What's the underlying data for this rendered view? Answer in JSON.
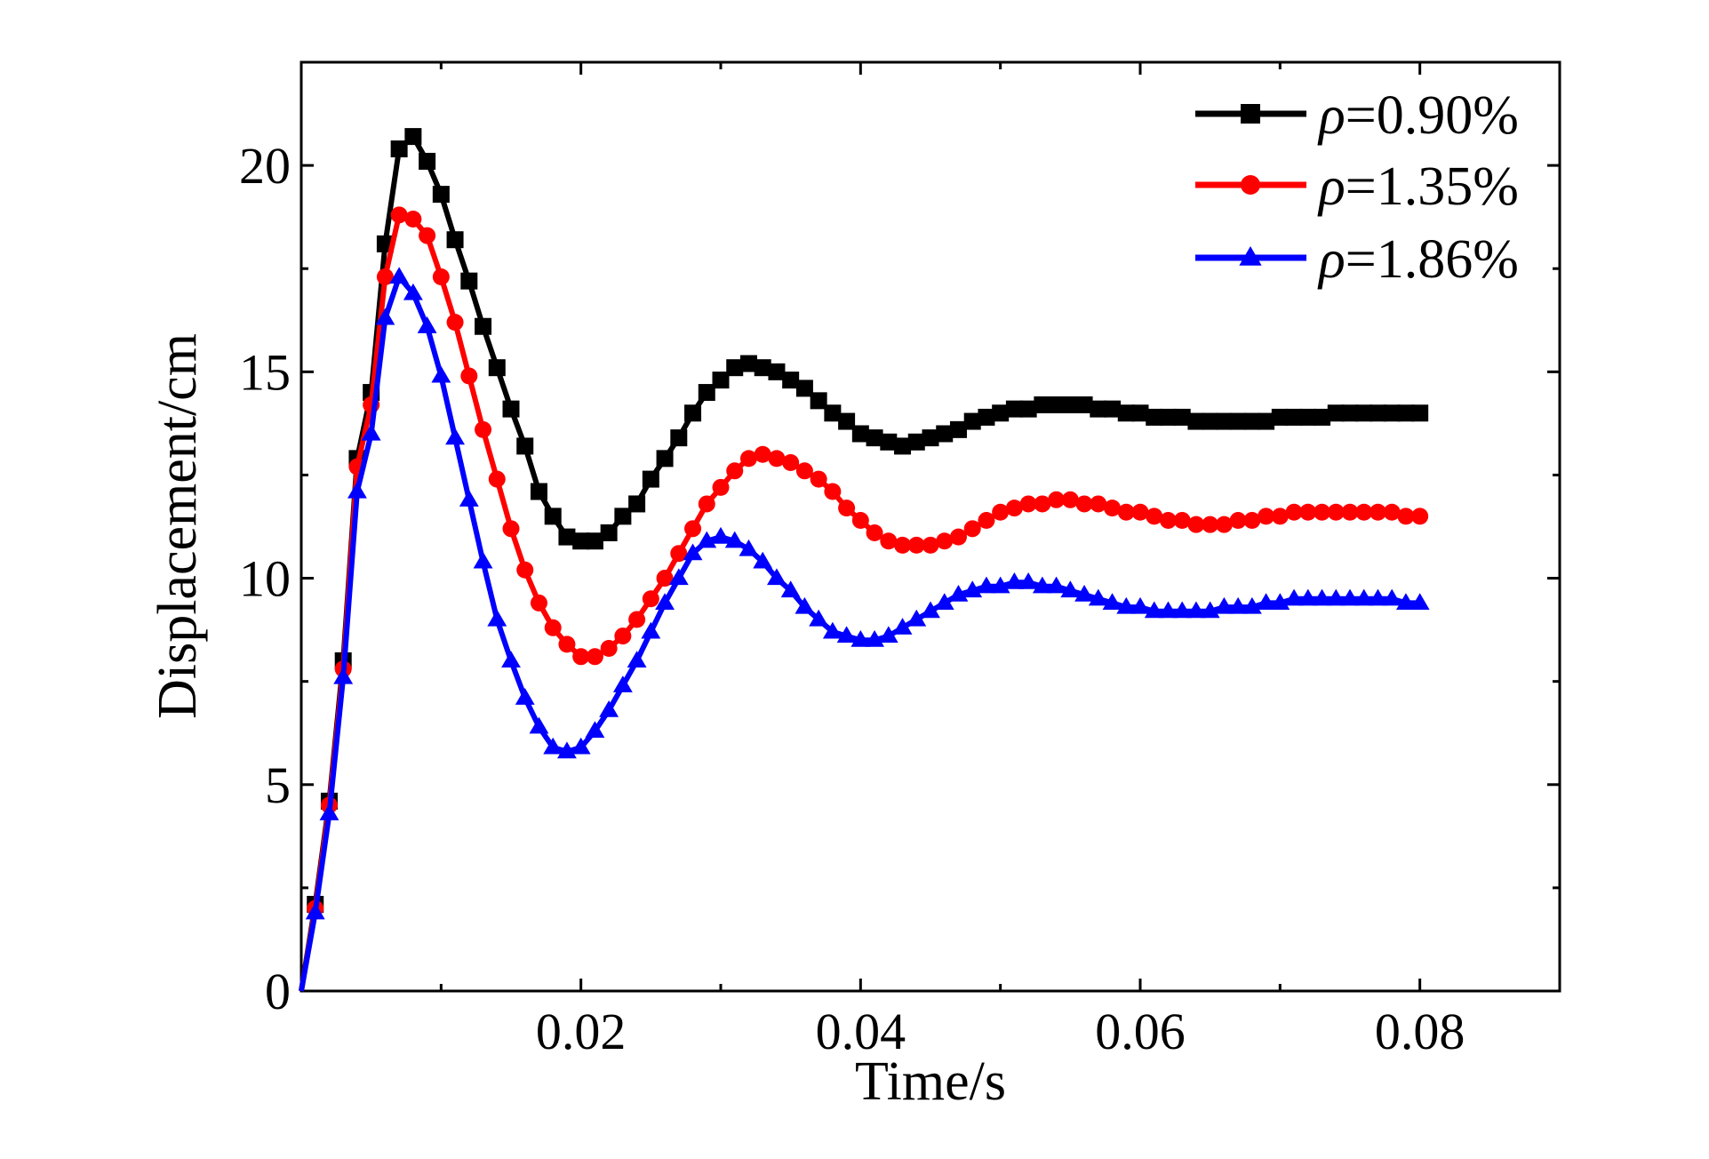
{
  "chart_data": {
    "type": "line",
    "title": "",
    "xlabel": "Time/s",
    "ylabel": "Displacement/cm",
    "xlim": [
      0,
      0.09
    ],
    "ylim": [
      0,
      22.5
    ],
    "xticks": [
      0.02,
      0.04,
      0.06,
      0.08
    ],
    "xtick_labels": [
      "0.02",
      "0.04",
      "0.06",
      "0.08"
    ],
    "yticks": [
      0,
      5,
      10,
      15,
      20
    ],
    "ytick_labels": [
      "0",
      "5",
      "10",
      "15",
      "20"
    ],
    "grid": false,
    "legend_position": "top-right",
    "series": [
      {
        "name": "ρ=0.90%",
        "legend_symbol": "ρ",
        "legend_text": "=0.90%",
        "color": "#000000",
        "marker": "square",
        "points": [
          [
            0,
            0
          ],
          [
            0.001,
            2.1
          ],
          [
            0.002,
            4.6
          ],
          [
            0.003,
            8.0
          ],
          [
            0.004,
            12.9
          ],
          [
            0.005,
            14.5
          ],
          [
            0.006,
            18.1
          ],
          [
            0.007,
            20.4
          ],
          [
            0.008,
            20.7
          ],
          [
            0.009,
            20.1
          ],
          [
            0.01,
            19.3
          ],
          [
            0.011,
            18.2
          ],
          [
            0.012,
            17.2
          ],
          [
            0.013,
            16.1
          ],
          [
            0.014,
            15.1
          ],
          [
            0.015,
            14.1
          ],
          [
            0.016,
            13.2
          ],
          [
            0.017,
            12.1
          ],
          [
            0.018,
            11.5
          ],
          [
            0.019,
            11.0
          ],
          [
            0.02,
            10.9
          ],
          [
            0.021,
            10.9
          ],
          [
            0.022,
            11.1
          ],
          [
            0.023,
            11.5
          ],
          [
            0.024,
            11.8
          ],
          [
            0.025,
            12.4
          ],
          [
            0.026,
            12.9
          ],
          [
            0.027,
            13.4
          ],
          [
            0.028,
            14.0
          ],
          [
            0.029,
            14.5
          ],
          [
            0.03,
            14.8
          ],
          [
            0.031,
            15.1
          ],
          [
            0.032,
            15.2
          ],
          [
            0.033,
            15.1
          ],
          [
            0.034,
            15.0
          ],
          [
            0.035,
            14.8
          ],
          [
            0.036,
            14.6
          ],
          [
            0.037,
            14.3
          ],
          [
            0.038,
            14.0
          ],
          [
            0.039,
            13.8
          ],
          [
            0.04,
            13.5
          ],
          [
            0.041,
            13.4
          ],
          [
            0.042,
            13.3
          ],
          [
            0.043,
            13.2
          ],
          [
            0.044,
            13.3
          ],
          [
            0.045,
            13.4
          ],
          [
            0.046,
            13.5
          ],
          [
            0.047,
            13.6
          ],
          [
            0.048,
            13.8
          ],
          [
            0.049,
            13.9
          ],
          [
            0.05,
            14.0
          ],
          [
            0.051,
            14.1
          ],
          [
            0.052,
            14.1
          ],
          [
            0.053,
            14.2
          ],
          [
            0.054,
            14.2
          ],
          [
            0.055,
            14.2
          ],
          [
            0.056,
            14.2
          ],
          [
            0.057,
            14.1
          ],
          [
            0.058,
            14.1
          ],
          [
            0.059,
            14.0
          ],
          [
            0.06,
            14.0
          ],
          [
            0.061,
            13.9
          ],
          [
            0.062,
            13.9
          ],
          [
            0.063,
            13.9
          ],
          [
            0.064,
            13.8
          ],
          [
            0.065,
            13.8
          ],
          [
            0.066,
            13.8
          ],
          [
            0.067,
            13.8
          ],
          [
            0.068,
            13.8
          ],
          [
            0.069,
            13.8
          ],
          [
            0.07,
            13.9
          ],
          [
            0.071,
            13.9
          ],
          [
            0.072,
            13.9
          ],
          [
            0.073,
            13.9
          ],
          [
            0.074,
            14.0
          ],
          [
            0.075,
            14.0
          ],
          [
            0.076,
            14.0
          ],
          [
            0.077,
            14.0
          ],
          [
            0.078,
            14.0
          ],
          [
            0.079,
            14.0
          ],
          [
            0.08,
            14.0
          ]
        ]
      },
      {
        "name": "ρ=1.35%",
        "legend_symbol": "ρ",
        "legend_text": "=1.35%",
        "color": "#ff0000",
        "marker": "circle",
        "points": [
          [
            0,
            0
          ],
          [
            0.001,
            2.0
          ],
          [
            0.002,
            4.5
          ],
          [
            0.003,
            7.8
          ],
          [
            0.004,
            12.7
          ],
          [
            0.005,
            14.2
          ],
          [
            0.006,
            17.3
          ],
          [
            0.007,
            18.8
          ],
          [
            0.008,
            18.7
          ],
          [
            0.009,
            18.3
          ],
          [
            0.01,
            17.3
          ],
          [
            0.011,
            16.2
          ],
          [
            0.012,
            14.9
          ],
          [
            0.013,
            13.6
          ],
          [
            0.014,
            12.4
          ],
          [
            0.015,
            11.2
          ],
          [
            0.016,
            10.2
          ],
          [
            0.017,
            9.4
          ],
          [
            0.018,
            8.8
          ],
          [
            0.019,
            8.4
          ],
          [
            0.02,
            8.1
          ],
          [
            0.021,
            8.1
          ],
          [
            0.022,
            8.3
          ],
          [
            0.023,
            8.6
          ],
          [
            0.024,
            9.0
          ],
          [
            0.025,
            9.5
          ],
          [
            0.026,
            10.0
          ],
          [
            0.027,
            10.6
          ],
          [
            0.028,
            11.2
          ],
          [
            0.029,
            11.8
          ],
          [
            0.03,
            12.2
          ],
          [
            0.031,
            12.6
          ],
          [
            0.032,
            12.9
          ],
          [
            0.033,
            13.0
          ],
          [
            0.034,
            12.9
          ],
          [
            0.035,
            12.8
          ],
          [
            0.036,
            12.6
          ],
          [
            0.037,
            12.4
          ],
          [
            0.038,
            12.1
          ],
          [
            0.039,
            11.7
          ],
          [
            0.04,
            11.4
          ],
          [
            0.041,
            11.1
          ],
          [
            0.042,
            10.9
          ],
          [
            0.043,
            10.8
          ],
          [
            0.044,
            10.8
          ],
          [
            0.045,
            10.8
          ],
          [
            0.046,
            10.9
          ],
          [
            0.047,
            11.0
          ],
          [
            0.048,
            11.2
          ],
          [
            0.049,
            11.4
          ],
          [
            0.05,
            11.6
          ],
          [
            0.051,
            11.7
          ],
          [
            0.052,
            11.8
          ],
          [
            0.053,
            11.8
          ],
          [
            0.054,
            11.9
          ],
          [
            0.055,
            11.9
          ],
          [
            0.056,
            11.8
          ],
          [
            0.057,
            11.8
          ],
          [
            0.058,
            11.7
          ],
          [
            0.059,
            11.6
          ],
          [
            0.06,
            11.6
          ],
          [
            0.061,
            11.5
          ],
          [
            0.062,
            11.4
          ],
          [
            0.063,
            11.4
          ],
          [
            0.064,
            11.3
          ],
          [
            0.065,
            11.3
          ],
          [
            0.066,
            11.3
          ],
          [
            0.067,
            11.4
          ],
          [
            0.068,
            11.4
          ],
          [
            0.069,
            11.5
          ],
          [
            0.07,
            11.5
          ],
          [
            0.071,
            11.6
          ],
          [
            0.072,
            11.6
          ],
          [
            0.073,
            11.6
          ],
          [
            0.074,
            11.6
          ],
          [
            0.075,
            11.6
          ],
          [
            0.076,
            11.6
          ],
          [
            0.077,
            11.6
          ],
          [
            0.078,
            11.6
          ],
          [
            0.079,
            11.5
          ],
          [
            0.08,
            11.5
          ]
        ]
      },
      {
        "name": "ρ=1.86%",
        "legend_symbol": "ρ",
        "legend_text": "=1.86%",
        "color": "#0000ff",
        "marker": "triangle",
        "points": [
          [
            0,
            0
          ],
          [
            0.001,
            1.9
          ],
          [
            0.002,
            4.3
          ],
          [
            0.003,
            7.6
          ],
          [
            0.004,
            12.1
          ],
          [
            0.005,
            13.5
          ],
          [
            0.006,
            16.3
          ],
          [
            0.007,
            17.3
          ],
          [
            0.008,
            16.9
          ],
          [
            0.009,
            16.1
          ],
          [
            0.01,
            14.9
          ],
          [
            0.011,
            13.4
          ],
          [
            0.012,
            11.9
          ],
          [
            0.013,
            10.4
          ],
          [
            0.014,
            9.0
          ],
          [
            0.015,
            8.0
          ],
          [
            0.016,
            7.1
          ],
          [
            0.017,
            6.4
          ],
          [
            0.018,
            5.9
          ],
          [
            0.019,
            5.8
          ],
          [
            0.02,
            5.9
          ],
          [
            0.021,
            6.3
          ],
          [
            0.022,
            6.8
          ],
          [
            0.023,
            7.4
          ],
          [
            0.024,
            8.0
          ],
          [
            0.025,
            8.7
          ],
          [
            0.026,
            9.4
          ],
          [
            0.027,
            10.0
          ],
          [
            0.028,
            10.6
          ],
          [
            0.029,
            10.9
          ],
          [
            0.03,
            11.0
          ],
          [
            0.031,
            10.9
          ],
          [
            0.032,
            10.7
          ],
          [
            0.033,
            10.4
          ],
          [
            0.034,
            10.0
          ],
          [
            0.035,
            9.7
          ],
          [
            0.036,
            9.3
          ],
          [
            0.037,
            9.0
          ],
          [
            0.038,
            8.7
          ],
          [
            0.039,
            8.6
          ],
          [
            0.04,
            8.5
          ],
          [
            0.041,
            8.5
          ],
          [
            0.042,
            8.6
          ],
          [
            0.043,
            8.8
          ],
          [
            0.044,
            9.0
          ],
          [
            0.045,
            9.2
          ],
          [
            0.046,
            9.4
          ],
          [
            0.047,
            9.6
          ],
          [
            0.048,
            9.7
          ],
          [
            0.049,
            9.8
          ],
          [
            0.05,
            9.8
          ],
          [
            0.051,
            9.9
          ],
          [
            0.052,
            9.9
          ],
          [
            0.053,
            9.8
          ],
          [
            0.054,
            9.8
          ],
          [
            0.055,
            9.7
          ],
          [
            0.056,
            9.6
          ],
          [
            0.057,
            9.5
          ],
          [
            0.058,
            9.4
          ],
          [
            0.059,
            9.3
          ],
          [
            0.06,
            9.3
          ],
          [
            0.061,
            9.2
          ],
          [
            0.062,
            9.2
          ],
          [
            0.063,
            9.2
          ],
          [
            0.064,
            9.2
          ],
          [
            0.065,
            9.2
          ],
          [
            0.066,
            9.3
          ],
          [
            0.067,
            9.3
          ],
          [
            0.068,
            9.3
          ],
          [
            0.069,
            9.4
          ],
          [
            0.07,
            9.4
          ],
          [
            0.071,
            9.5
          ],
          [
            0.072,
            9.5
          ],
          [
            0.073,
            9.5
          ],
          [
            0.074,
            9.5
          ],
          [
            0.075,
            9.5
          ],
          [
            0.076,
            9.5
          ],
          [
            0.077,
            9.5
          ],
          [
            0.078,
            9.5
          ],
          [
            0.079,
            9.4
          ],
          [
            0.08,
            9.4
          ]
        ]
      }
    ]
  }
}
